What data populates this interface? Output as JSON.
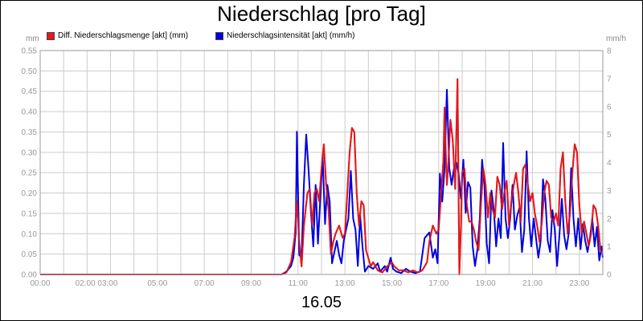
{
  "chart_data": {
    "type": "line",
    "title": "Niederschlag [pro Tag]",
    "xlabel": "16.05",
    "y_left": {
      "unit": "mm",
      "ylim": [
        0,
        0.55
      ],
      "ticks": [
        "0.00",
        "0.05",
        "0.10",
        "0.15",
        "0.20",
        "0.25",
        "0.30",
        "0.35",
        "0.40",
        "0.45",
        "0.50",
        "0.55"
      ]
    },
    "y_right": {
      "unit": "mm/h",
      "ylim": [
        0,
        8
      ],
      "ticks": [
        "0",
        "1",
        "2",
        "3",
        "4",
        "5",
        "6",
        "7",
        "8"
      ]
    },
    "x_range": [
      0,
      24
    ],
    "x_ticks": [
      {
        "v": 0,
        "label": "00:00"
      },
      {
        "v": 2.4,
        "label": "02:00 03:00"
      },
      {
        "v": 5,
        "label": "05:00"
      },
      {
        "v": 7,
        "label": "07:00"
      },
      {
        "v": 9,
        "label": "09:00"
      },
      {
        "v": 11,
        "label": "11:00"
      },
      {
        "v": 13,
        "label": "13:00"
      },
      {
        "v": 15,
        "label": "15:00"
      },
      {
        "v": 17,
        "label": "17:00"
      },
      {
        "v": 19,
        "label": "19:00"
      },
      {
        "v": 21,
        "label": "21:00"
      },
      {
        "v": 23,
        "label": "23:00"
      }
    ],
    "grid": true,
    "legend_position": "top-left",
    "series": [
      {
        "name": "Diff. Niederschlagsmenge [akt] (mm)",
        "axis": "left",
        "color": "#e41a1c",
        "points": [
          [
            0,
            0
          ],
          [
            10.3,
            0
          ],
          [
            10.5,
            0.005
          ],
          [
            10.7,
            0.03
          ],
          [
            10.85,
            0.09
          ],
          [
            10.95,
            0.18
          ],
          [
            11.05,
            0.08
          ],
          [
            11.15,
            0.02
          ],
          [
            11.25,
            0.12
          ],
          [
            11.4,
            0.2
          ],
          [
            11.5,
            0.21
          ],
          [
            11.6,
            0.12
          ],
          [
            11.7,
            0.2
          ],
          [
            11.8,
            0.21
          ],
          [
            11.9,
            0.18
          ],
          [
            12.0,
            0.26
          ],
          [
            12.1,
            0.32
          ],
          [
            12.2,
            0.22
          ],
          [
            12.3,
            0.16
          ],
          [
            12.4,
            0.05
          ],
          [
            12.5,
            0.08
          ],
          [
            12.6,
            0.1
          ],
          [
            12.75,
            0.12
          ],
          [
            12.9,
            0.09
          ],
          [
            13.0,
            0.1
          ],
          [
            13.1,
            0.2
          ],
          [
            13.2,
            0.3
          ],
          [
            13.3,
            0.36
          ],
          [
            13.4,
            0.35
          ],
          [
            13.5,
            0.2
          ],
          [
            13.6,
            0.12
          ],
          [
            13.7,
            0.18
          ],
          [
            13.8,
            0.17
          ],
          [
            13.9,
            0.06
          ],
          [
            14.0,
            0.04
          ],
          [
            14.1,
            0.02
          ],
          [
            14.2,
            0.03
          ],
          [
            14.3,
            0.02
          ],
          [
            14.4,
            0.01
          ],
          [
            14.6,
            0.005
          ],
          [
            14.8,
            0.02
          ],
          [
            15.0,
            0.03
          ],
          [
            15.1,
            0.02
          ],
          [
            15.3,
            0.01
          ],
          [
            15.5,
            0.01
          ],
          [
            15.7,
            0.005
          ],
          [
            15.9,
            0.01
          ],
          [
            16.1,
            0.005
          ],
          [
            16.3,
            0.01
          ],
          [
            16.5,
            0.03
          ],
          [
            16.6,
            0.08
          ],
          [
            16.75,
            0.12
          ],
          [
            16.9,
            0.1
          ],
          [
            17.0,
            0.11
          ],
          [
            17.1,
            0.2
          ],
          [
            17.2,
            0.28
          ],
          [
            17.25,
            0.41
          ],
          [
            17.3,
            0.3
          ],
          [
            17.35,
            0.22
          ],
          [
            17.4,
            0.26
          ],
          [
            17.5,
            0.38
          ],
          [
            17.6,
            0.33
          ],
          [
            17.7,
            0.21
          ],
          [
            17.8,
            0.48
          ],
          [
            17.88,
            0.0
          ],
          [
            17.95,
            0.12
          ],
          [
            18.0,
            0.25
          ],
          [
            18.1,
            0.26
          ],
          [
            18.2,
            0.17
          ],
          [
            18.3,
            0.13
          ],
          [
            18.4,
            0.13
          ],
          [
            18.5,
            0.11
          ],
          [
            18.6,
            0.08
          ],
          [
            18.7,
            0.06
          ],
          [
            18.8,
            0.17
          ],
          [
            18.9,
            0.26
          ],
          [
            19.0,
            0.22
          ],
          [
            19.1,
            0.14
          ],
          [
            19.2,
            0.2
          ],
          [
            19.3,
            0.16
          ],
          [
            19.4,
            0.14
          ],
          [
            19.5,
            0.24
          ],
          [
            19.6,
            0.22
          ],
          [
            19.7,
            0.16
          ],
          [
            19.8,
            0.2
          ],
          [
            19.9,
            0.23
          ],
          [
            20.0,
            0.12
          ],
          [
            20.1,
            0.18
          ],
          [
            20.2,
            0.22
          ],
          [
            20.3,
            0.25
          ],
          [
            20.4,
            0.2
          ],
          [
            20.5,
            0.13
          ],
          [
            20.6,
            0.26
          ],
          [
            20.7,
            0.27
          ],
          [
            20.8,
            0.22
          ],
          [
            20.9,
            0.18
          ],
          [
            21.0,
            0.2
          ],
          [
            21.1,
            0.15
          ],
          [
            21.2,
            0.12
          ],
          [
            21.3,
            0.08
          ],
          [
            21.4,
            0.13
          ],
          [
            21.5,
            0.2
          ],
          [
            21.6,
            0.23
          ],
          [
            21.7,
            0.22
          ],
          [
            21.8,
            0.14
          ],
          [
            21.9,
            0.13
          ],
          [
            22.0,
            0.15
          ],
          [
            22.1,
            0.12
          ],
          [
            22.2,
            0.26
          ],
          [
            22.3,
            0.3
          ],
          [
            22.4,
            0.18
          ],
          [
            22.5,
            0.1
          ],
          [
            22.6,
            0.15
          ],
          [
            22.7,
            0.25
          ],
          [
            22.8,
            0.32
          ],
          [
            22.9,
            0.3
          ],
          [
            23.0,
            0.17
          ],
          [
            23.1,
            0.1
          ],
          [
            23.2,
            0.13
          ],
          [
            23.3,
            0.1
          ],
          [
            23.4,
            0.07
          ],
          [
            23.5,
            0.1
          ],
          [
            23.6,
            0.17
          ],
          [
            23.7,
            0.16
          ],
          [
            23.8,
            0.12
          ],
          [
            23.9,
            0.06
          ],
          [
            24.0,
            0.05
          ]
        ]
      },
      {
        "name": "Niederschlagsintensität [akt] (mm/h)",
        "axis": "right",
        "color": "#0000e0",
        "points": [
          [
            0,
            0
          ],
          [
            10.3,
            0
          ],
          [
            10.5,
            0.1
          ],
          [
            10.7,
            0.3
          ],
          [
            10.8,
            0.6
          ],
          [
            10.9,
            1.5
          ],
          [
            10.95,
            5.1
          ],
          [
            11.05,
            0.7
          ],
          [
            11.15,
            0.6
          ],
          [
            11.25,
            3.2
          ],
          [
            11.35,
            5.0
          ],
          [
            11.45,
            3.7
          ],
          [
            11.55,
            2.2
          ],
          [
            11.65,
            1.0
          ],
          [
            11.75,
            3.2
          ],
          [
            11.85,
            1.1
          ],
          [
            11.95,
            2.7
          ],
          [
            12.05,
            4.2
          ],
          [
            12.15,
            1.8
          ],
          [
            12.25,
            3.2
          ],
          [
            12.35,
            2.6
          ],
          [
            12.45,
            0.4
          ],
          [
            12.55,
            0.8
          ],
          [
            12.65,
            1.2
          ],
          [
            12.75,
            0.7
          ],
          [
            12.85,
            0.4
          ],
          [
            12.95,
            1.2
          ],
          [
            13.05,
            1.6
          ],
          [
            13.15,
            2.0
          ],
          [
            13.25,
            3.7
          ],
          [
            13.35,
            2.0
          ],
          [
            13.45,
            1.6
          ],
          [
            13.55,
            0.3
          ],
          [
            13.65,
            2.1
          ],
          [
            13.75,
            1.0
          ],
          [
            13.85,
            0.1
          ],
          [
            14.0,
            0.3
          ],
          [
            14.2,
            0.2
          ],
          [
            14.4,
            0.4
          ],
          [
            14.5,
            0.1
          ],
          [
            14.7,
            0.3
          ],
          [
            14.8,
            0.1
          ],
          [
            14.95,
            0.6
          ],
          [
            15.05,
            0.2
          ],
          [
            15.2,
            0.1
          ],
          [
            15.4,
            0.05
          ],
          [
            15.6,
            0.2
          ],
          [
            15.8,
            0.1
          ],
          [
            16.0,
            0.05
          ],
          [
            16.2,
            0.1
          ],
          [
            16.4,
            1.3
          ],
          [
            16.6,
            1.5
          ],
          [
            16.75,
            0.6
          ],
          [
            16.85,
            0.9
          ],
          [
            16.95,
            0.4
          ],
          [
            17.05,
            3.6
          ],
          [
            17.15,
            2.6
          ],
          [
            17.25,
            3.8
          ],
          [
            17.35,
            6.6
          ],
          [
            17.45,
            3.8
          ],
          [
            17.55,
            3.2
          ],
          [
            17.65,
            3.8
          ],
          [
            17.75,
            4.0
          ],
          [
            17.85,
            3.6
          ],
          [
            17.95,
            2.7
          ],
          [
            18.05,
            4.1
          ],
          [
            18.15,
            2.2
          ],
          [
            18.25,
            3.3
          ],
          [
            18.35,
            3.1
          ],
          [
            18.45,
            1.0
          ],
          [
            18.55,
            0.3
          ],
          [
            18.65,
            0.9
          ],
          [
            18.75,
            2.0
          ],
          [
            18.85,
            4.1
          ],
          [
            18.95,
            3.2
          ],
          [
            19.05,
            1.1
          ],
          [
            19.15,
            0.4
          ],
          [
            19.25,
            3.0
          ],
          [
            19.35,
            2.3
          ],
          [
            19.45,
            1.0
          ],
          [
            19.55,
            2.0
          ],
          [
            19.65,
            1.3
          ],
          [
            19.75,
            4.7
          ],
          [
            19.85,
            2.0
          ],
          [
            19.95,
            1.3
          ],
          [
            20.05,
            2.0
          ],
          [
            20.15,
            3.2
          ],
          [
            20.25,
            1.6
          ],
          [
            20.35,
            2.1
          ],
          [
            20.45,
            2.4
          ],
          [
            20.55,
            0.8
          ],
          [
            20.65,
            1.6
          ],
          [
            20.75,
            4.4
          ],
          [
            20.85,
            2.0
          ],
          [
            20.95,
            1.0
          ],
          [
            21.05,
            2.0
          ],
          [
            21.15,
            1.3
          ],
          [
            21.25,
            0.6
          ],
          [
            21.35,
            1.2
          ],
          [
            21.45,
            3.4
          ],
          [
            21.55,
            2.7
          ],
          [
            21.65,
            1.2
          ],
          [
            21.75,
            0.8
          ],
          [
            21.85,
            2.3
          ],
          [
            21.95,
            1.6
          ],
          [
            22.05,
            0.3
          ],
          [
            22.15,
            1.4
          ],
          [
            22.25,
            2.7
          ],
          [
            22.35,
            1.4
          ],
          [
            22.45,
            0.9
          ],
          [
            22.55,
            1.5
          ],
          [
            22.65,
            3.8
          ],
          [
            22.75,
            2.0
          ],
          [
            22.85,
            1.0
          ],
          [
            22.95,
            2.0
          ],
          [
            23.05,
            0.9
          ],
          [
            23.15,
            1.8
          ],
          [
            23.25,
            1.2
          ],
          [
            23.35,
            0.8
          ],
          [
            23.45,
            1.3
          ],
          [
            23.55,
            2.0
          ],
          [
            23.65,
            1.0
          ],
          [
            23.75,
            1.7
          ],
          [
            23.85,
            0.5
          ],
          [
            23.95,
            1.0
          ],
          [
            24.0,
            0.6
          ]
        ]
      }
    ]
  }
}
